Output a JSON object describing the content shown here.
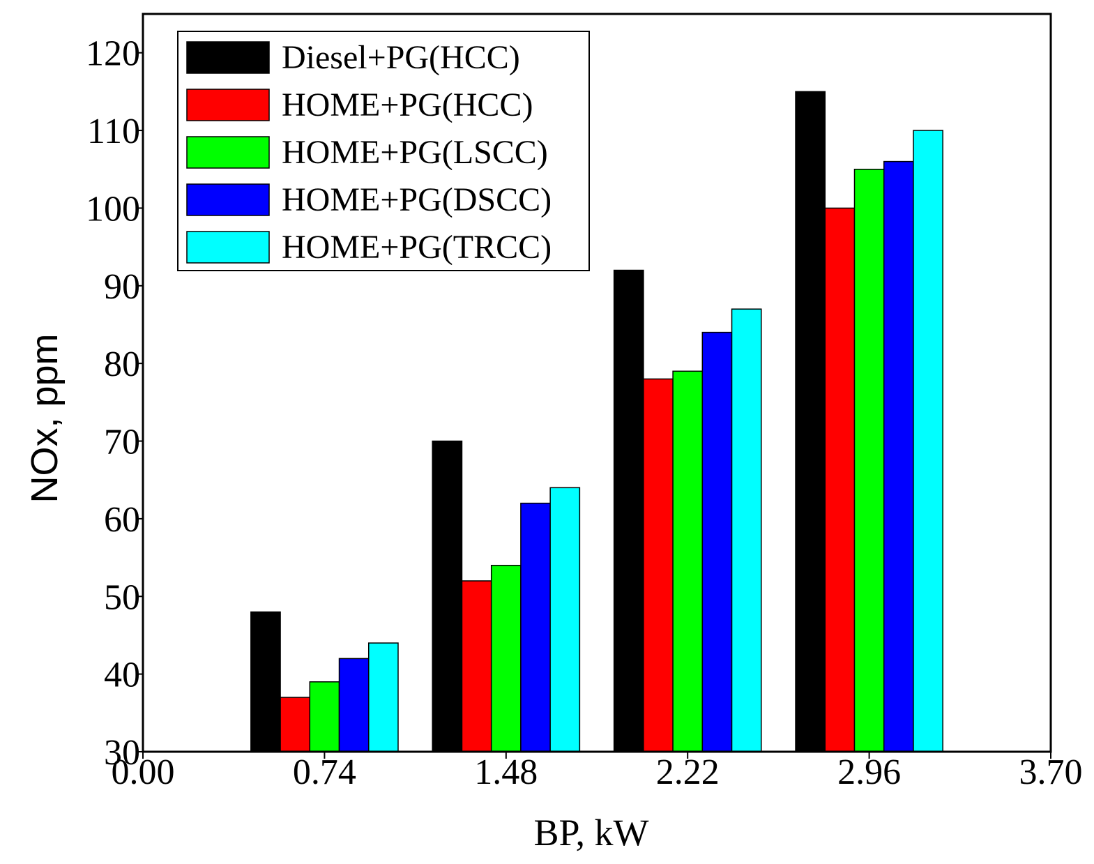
{
  "chart_data": {
    "type": "bar",
    "title": "",
    "xlabel": "BP, kW",
    "ylabel": "NOx, ppm",
    "xlim": [
      0.0,
      3.7
    ],
    "ylim": [
      30,
      125
    ],
    "x_ticks": [
      "0.00",
      "0.74",
      "1.48",
      "2.22",
      "2.96",
      "3.70"
    ],
    "y_ticks": [
      "30",
      "40",
      "50",
      "60",
      "70",
      "80",
      "90",
      "100",
      "110",
      "120"
    ],
    "categories": [
      "0.74",
      "1.48",
      "2.22",
      "2.96"
    ],
    "category_values": [
      0.74,
      1.48,
      2.22,
      2.96
    ],
    "series": [
      {
        "name": "Diesel+PG(HCC)",
        "color": "#000000",
        "values": [
          48,
          70,
          92,
          115
        ]
      },
      {
        "name": "HOME+PG(HCC)",
        "color": "#ff0000",
        "values": [
          37,
          52,
          78,
          100
        ]
      },
      {
        "name": "HOME+PG(LSCC)",
        "color": "#00ff00",
        "values": [
          39,
          54,
          79,
          105
        ]
      },
      {
        "name": "HOME+PG(DSCC)",
        "color": "#0000ff",
        "values": [
          42,
          62,
          84,
          106
        ]
      },
      {
        "name": "HOME+PG(TRCC)",
        "color": "#00ffff",
        "values": [
          44,
          64,
          87,
          110
        ]
      }
    ],
    "bar_width": 0.12,
    "legend_position": "top-left",
    "grid": false
  }
}
